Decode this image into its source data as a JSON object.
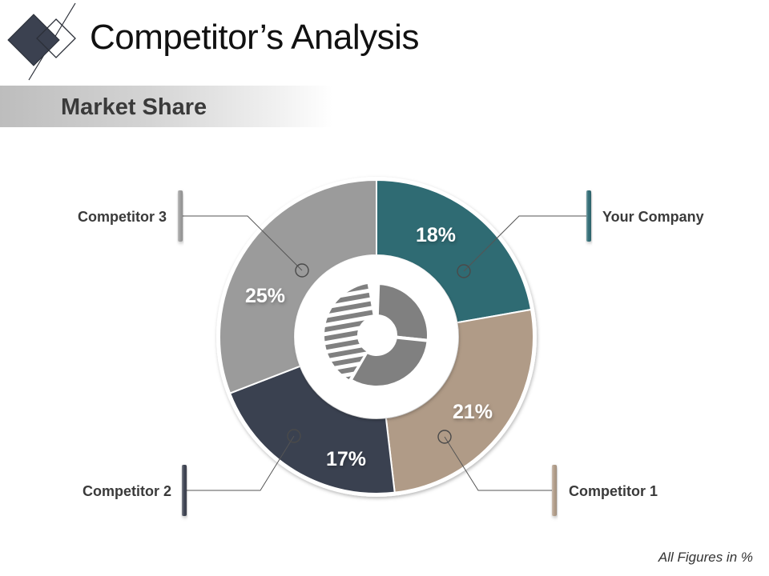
{
  "header": {
    "title": "Competitor’s Analysis",
    "subtitle": "Market Share"
  },
  "footer": {
    "note": "All Figures in %"
  },
  "chart_data": {
    "type": "pie",
    "variant": "donut",
    "unit": "%",
    "slices": [
      {
        "label": "Your Company",
        "value": 18,
        "value_label": "18%",
        "color": "#2f6b73"
      },
      {
        "label": "Competitor 1",
        "value": 21,
        "value_label": "21%",
        "color": "#b09b87"
      },
      {
        "label": "Competitor 2",
        "value": 17,
        "value_label": "17%",
        "color": "#3a4150"
      },
      {
        "label": "Competitor 3",
        "value": 25,
        "value_label": "25%",
        "color": "#9b9b9b"
      }
    ],
    "legend": "callouts with leader lines"
  },
  "theme": {
    "accent": "#3a4150",
    "icon_color": "#808080"
  }
}
